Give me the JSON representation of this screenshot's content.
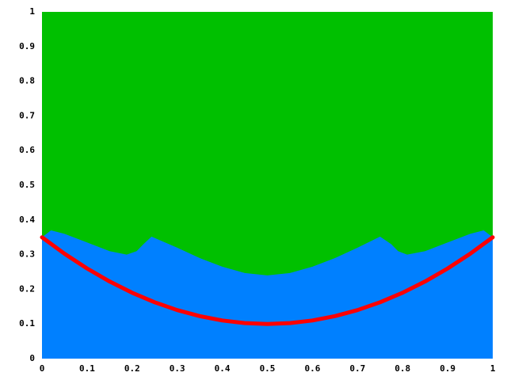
{
  "chart_data": {
    "type": "area",
    "background": "#00c000",
    "grid": false,
    "xlim": [
      0,
      1
    ],
    "ylim": [
      0,
      1
    ],
    "xticks": [
      0,
      0.1,
      0.2,
      0.3,
      0.4,
      0.5,
      0.6,
      0.7,
      0.8,
      0.9,
      1
    ],
    "yticks": [
      0,
      0.1,
      0.2,
      0.3,
      0.4,
      0.5,
      0.6,
      0.7,
      0.8,
      0.9,
      1
    ],
    "series": [
      {
        "type": "area",
        "color": "#0080ff",
        "x": [
          0,
          0.02,
          0.05,
          0.1,
          0.15,
          0.188,
          0.21,
          0.225,
          0.243,
          0.3,
          0.35,
          0.4,
          0.45,
          0.5,
          0.55,
          0.6,
          0.65,
          0.7,
          0.75,
          0.775,
          0.79,
          0.81,
          0.85,
          0.9,
          0.95,
          0.98,
          1
        ],
        "values": [
          0.35,
          0.37,
          0.36,
          0.335,
          0.31,
          0.3,
          0.31,
          0.33,
          0.352,
          0.32,
          0.29,
          0.265,
          0.247,
          0.24,
          0.247,
          0.265,
          0.29,
          0.32,
          0.352,
          0.33,
          0.31,
          0.3,
          0.31,
          0.335,
          0.36,
          0.37,
          0.35
        ]
      },
      {
        "type": "line",
        "color": "#ff0000",
        "x": [
          0,
          0.05,
          0.1,
          0.15,
          0.2,
          0.25,
          0.3,
          0.35,
          0.4,
          0.45,
          0.5,
          0.55,
          0.6,
          0.65,
          0.7,
          0.75,
          0.8,
          0.85,
          0.9,
          0.95,
          1
        ],
        "values": [
          0.35,
          0.3025,
          0.26,
          0.2225,
          0.19,
          0.1625,
          0.14,
          0.1225,
          0.11,
          0.1025,
          0.1,
          0.1025,
          0.11,
          0.1225,
          0.14,
          0.1625,
          0.19,
          0.2225,
          0.26,
          0.3025,
          0.35
        ]
      }
    ]
  }
}
